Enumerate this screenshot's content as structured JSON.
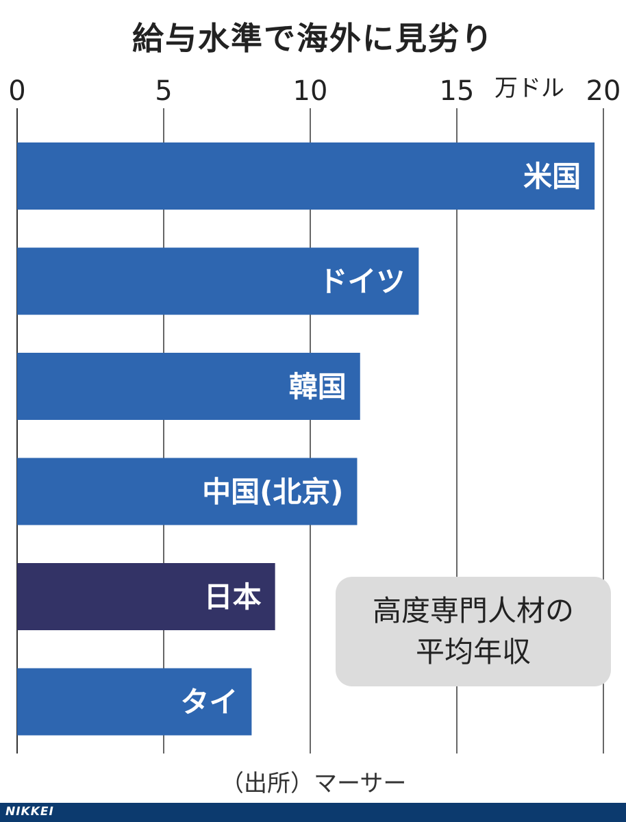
{
  "chart_data": {
    "type": "bar",
    "orientation": "horizontal",
    "title": "給与水準で海外に見劣り",
    "unit": "万ドル",
    "xlim": [
      0,
      20
    ],
    "ticks": [
      0,
      5,
      10,
      15,
      20
    ],
    "categories": [
      "米国",
      "ドイツ",
      "韓国",
      "中国(北京)",
      "日本",
      "タイ"
    ],
    "values": [
      19.7,
      13.7,
      11.7,
      11.6,
      8.8,
      8.0
    ],
    "colors": [
      "#2e66b0",
      "#2e66b0",
      "#2e66b0",
      "#2e66b0",
      "#333366",
      "#2e66b0"
    ],
    "grid": true,
    "note_lines": [
      "高度専門人材の",
      "平均年収"
    ],
    "source": "（出所）マーサー"
  },
  "footer": {
    "brand": "NIKKEI"
  }
}
